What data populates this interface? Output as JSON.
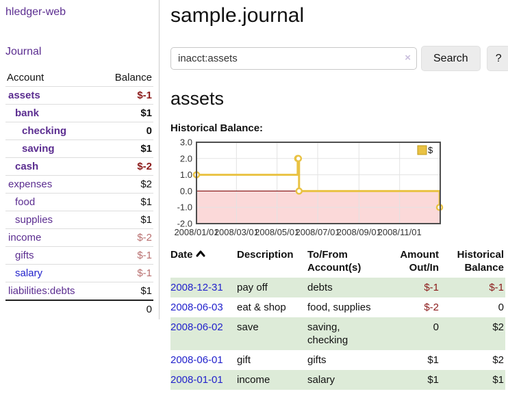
{
  "app": {
    "title": "hledger-web"
  },
  "sidebar": {
    "journal_label": "Journal",
    "accounts_table": {
      "headers": [
        "Account",
        "Balance"
      ],
      "rows": [
        {
          "name": "assets",
          "depth": 1,
          "strong": true,
          "name_class": "",
          "balance": "$-1",
          "balance_class": "neg-strong"
        },
        {
          "name": "bank",
          "depth": 2,
          "strong": true,
          "name_class": "",
          "balance": "$1",
          "balance_class": ""
        },
        {
          "name": "checking",
          "depth": 3,
          "strong": true,
          "name_class": "",
          "balance": "0",
          "balance_class": ""
        },
        {
          "name": "saving",
          "depth": 3,
          "strong": true,
          "name_class": "",
          "balance": "$1",
          "balance_class": ""
        },
        {
          "name": "cash",
          "depth": 2,
          "strong": true,
          "name_class": "",
          "balance": "$-2",
          "balance_class": "neg-strong"
        },
        {
          "name": "expenses",
          "depth": 1,
          "strong": false,
          "name_class": "",
          "balance": "$2",
          "balance_class": ""
        },
        {
          "name": "food",
          "depth": 2,
          "strong": false,
          "name_class": "",
          "balance": "$1",
          "balance_class": ""
        },
        {
          "name": "supplies",
          "depth": 2,
          "strong": false,
          "name_class": "",
          "balance": "$1",
          "balance_class": ""
        },
        {
          "name": "income",
          "depth": 1,
          "strong": false,
          "name_class": "",
          "balance": "$-2",
          "balance_class": "neg-soft"
        },
        {
          "name": "gifts",
          "depth": 2,
          "strong": false,
          "name_class": "",
          "balance": "$-1",
          "balance_class": "neg-soft"
        },
        {
          "name": "salary",
          "depth": 2,
          "strong": false,
          "name_class": "blue",
          "balance": "$-1",
          "balance_class": "neg-soft"
        },
        {
          "name": "liabilities:debts",
          "depth": 1,
          "strong": false,
          "name_class": "",
          "balance": "$1",
          "balance_class": ""
        }
      ],
      "total": "0"
    }
  },
  "main": {
    "title": "sample.journal",
    "search": {
      "value": "inacct:assets",
      "clear_icon": "×",
      "search_label": "Search",
      "help_label": "?"
    },
    "account_heading": "assets",
    "section_label": "Historical Balance:"
  },
  "chart_data": {
    "type": "line",
    "title": "Historical Balance:",
    "step": true,
    "series": [
      {
        "name": "$",
        "points": [
          [
            "2008-01-01",
            1
          ],
          [
            "2008-06-01",
            2
          ],
          [
            "2008-06-02",
            2
          ],
          [
            "2008-06-03",
            0
          ],
          [
            "2008-12-31",
            -1
          ]
        ]
      }
    ],
    "x_range": [
      "2008-01-01",
      "2009-01-01"
    ],
    "ylim": [
      -2,
      3
    ],
    "y_ticks": [
      3.0,
      2.0,
      1.0,
      0.0,
      -1.0,
      -2.0
    ],
    "x_ticks": [
      "2008/01/01",
      "2008/03/01",
      "2008/05/01",
      "2008/07/01",
      "2008/09/01",
      "2008/11/01"
    ],
    "grid": true,
    "legend_position": "top-right",
    "negative_region_shaded": true
  },
  "register_table": {
    "headers": [
      {
        "label": "Date",
        "align": "left",
        "sorted": "asc"
      },
      {
        "label": "Description",
        "align": "left"
      },
      {
        "label": "To/From Account(s)",
        "align": "left"
      },
      {
        "label": "Amount Out/In",
        "align": "right"
      },
      {
        "label": "Historical Balance",
        "align": "right"
      }
    ],
    "rows": [
      {
        "date": "2008-12-31",
        "description": "pay off",
        "accounts": "debts",
        "amount": "$-1",
        "amount_neg": true,
        "balance": "$-1",
        "balance_neg": true
      },
      {
        "date": "2008-06-03",
        "description": "eat & shop",
        "accounts": "food, supplies",
        "amount": "$-2",
        "amount_neg": true,
        "balance": "0",
        "balance_neg": false
      },
      {
        "date": "2008-06-02",
        "description": "save",
        "accounts": "saving, checking",
        "amount": "0",
        "amount_neg": false,
        "balance": "$2",
        "balance_neg": false
      },
      {
        "date": "2008-06-01",
        "description": "gift",
        "accounts": "gifts",
        "amount": "$1",
        "amount_neg": false,
        "balance": "$2",
        "balance_neg": false
      },
      {
        "date": "2008-01-01",
        "description": "income",
        "accounts": "salary",
        "amount": "$1",
        "amount_neg": false,
        "balance": "$1",
        "balance_neg": false
      }
    ]
  },
  "colors": {
    "purple_link": "#5b2d90",
    "blue_link": "#2222cc",
    "negative_strong": "#8b1a1a",
    "negative_soft": "#b86f6f",
    "row_green": "#ddebd8",
    "chart": {
      "line": "#e9c243",
      "marker_fill": "#ffffff",
      "negative_area": "#fbd9d9",
      "zero_line": "#8b1d1d",
      "grid": "#e3e3e3",
      "border": "#4d4d4d",
      "legend_square": "#e9c243",
      "legend_square_border": "#bf9b1e",
      "tick_text": "#333333"
    }
  }
}
